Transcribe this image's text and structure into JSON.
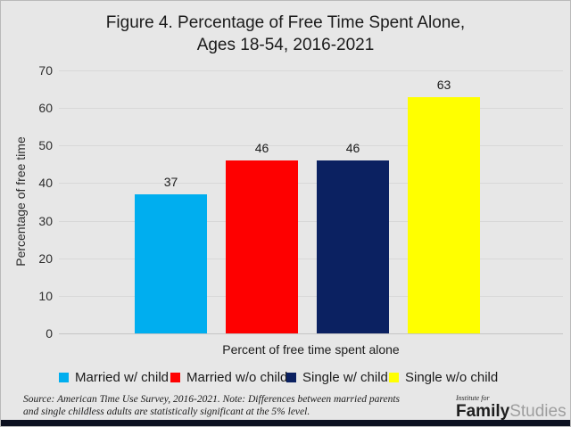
{
  "title": "Figure 4. Percentage of Free Time Spent Alone,\nAges 18-54, 2016-2021",
  "chart_data": {
    "type": "bar",
    "title": "Figure 4. Percentage of Free Time Spent Alone, Ages 18-54, 2016-2021",
    "categories": [
      "Married w/ child",
      "Married w/o child",
      "Single w/ child",
      "Single w/o child"
    ],
    "values": [
      37,
      46,
      46,
      63
    ],
    "colors": [
      "#00aeef",
      "#fe0000",
      "#0b2161",
      "#ffff00"
    ],
    "xlabel": "Percent of free time spent alone",
    "ylabel": "Percentage of free time",
    "ylim": [
      0,
      70
    ],
    "ytick_step": 10,
    "grid": "horizontal",
    "legend_position": "bottom",
    "value_labels": true
  },
  "footer": {
    "source_note": "Source: American Time Use Survey, 2016-2021. Note: Differences between married parents\nand single childless adults are statistically significant at the 5% level."
  },
  "logo": {
    "line1": "Institute for",
    "family": "Family",
    "studies": "Studies"
  },
  "palette": {
    "background": "#e7e7e7",
    "gridline": "#d8d8d8",
    "axis_line": "#c4c4c4",
    "text": "#1b1b1b",
    "bottom_bar": "#0c1020",
    "logo_studies_gray": "#9e9e9e"
  }
}
